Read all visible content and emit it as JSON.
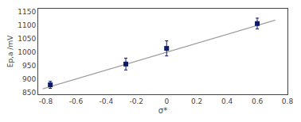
{
  "chart_data": {
    "type": "scatter",
    "xlabel": "σ*",
    "ylabel": "Ep,a /mV",
    "series": [
      {
        "type": "line",
        "x": [
          -0.82,
          0.72
        ],
        "values": [
          865,
          1120
        ],
        "color": "#a0a0a0",
        "line_style": "solid"
      },
      {
        "type": "scatter",
        "x": [
          -0.77,
          -0.27,
          0.0,
          0.6
        ],
        "values": [
          880,
          957,
          1015,
          1107
        ],
        "yerr": [
          13,
          22,
          28,
          20
        ],
        "color": "#0d1a6e",
        "marker": "square"
      }
    ],
    "xlim": [
      -0.85,
      0.8
    ],
    "ylim": [
      845,
      1162
    ],
    "xticks": [
      -0.8,
      -0.6,
      -0.4,
      -0.2,
      0,
      0.2,
      0.4,
      0.6,
      0.8
    ],
    "yticks": [
      850,
      900,
      950,
      1000,
      1050,
      1100,
      1150
    ],
    "grid": false
  }
}
